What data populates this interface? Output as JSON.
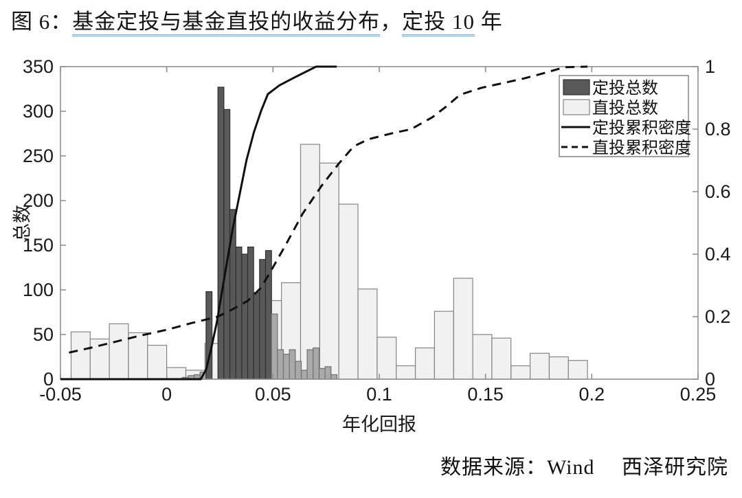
{
  "title": {
    "parts": [
      {
        "text": "图 6：",
        "underline": false
      },
      {
        "text": "基金定投与基金直投的收益分布",
        "underline": true
      },
      {
        "text": "，",
        "underline": false
      },
      {
        "text": "定投 10",
        "underline": true
      },
      {
        "text": " 年",
        "underline": false
      }
    ]
  },
  "source_note": "数据来源：Wind　 西泽研究院",
  "chart_data": {
    "type": "bar",
    "subtype": "histogram_with_cumulative_density",
    "title": "基金定投与基金直投的收益分布，定投10年",
    "xlabel": "年化回报",
    "ylabel_left": "总数",
    "ylabel_right": "",
    "x_range": [
      -0.05,
      0.25
    ],
    "y_left_range": [
      0,
      350
    ],
    "y_right_range": [
      0,
      1
    ],
    "grid": false,
    "axis_color": "#8f8f8f",
    "tick_label_color": "#191919",
    "x_ticks": [
      {
        "v": -0.05,
        "label": "-0.05"
      },
      {
        "v": 0,
        "label": "0"
      },
      {
        "v": 0.05,
        "label": "0.05"
      },
      {
        "v": 0.1,
        "label": "0.1"
      },
      {
        "v": 0.15,
        "label": "0.15"
      },
      {
        "v": 0.2,
        "label": "0.2"
      },
      {
        "v": 0.25,
        "label": "0.25"
      }
    ],
    "y_ticks_left": [
      {
        "v": 0,
        "label": "0"
      },
      {
        "v": 50,
        "label": "50"
      },
      {
        "v": 100,
        "label": "100"
      },
      {
        "v": 150,
        "label": "150"
      },
      {
        "v": 200,
        "label": "200"
      },
      {
        "v": 250,
        "label": "250"
      },
      {
        "v": 300,
        "label": "300"
      },
      {
        "v": 350,
        "label": "350"
      }
    ],
    "y_ticks_right": [
      {
        "v": 0,
        "label": "0"
      },
      {
        "v": 0.2,
        "label": "0.2"
      },
      {
        "v": 0.4,
        "label": "0.4"
      },
      {
        "v": 0.6,
        "label": "0.6"
      },
      {
        "v": 0.8,
        "label": "0.8"
      },
      {
        "v": 1,
        "label": "1"
      }
    ],
    "series": [
      {
        "name": "定投总数",
        "type": "histogram",
        "axis": "left",
        "bin_start": 0.0073,
        "bin_width": 0.0028,
        "counts": [
          2,
          4,
          5,
          8,
          98,
          0,
          327,
          302,
          190,
          148,
          140,
          148,
          97,
          134,
          144,
          73,
          33,
          28,
          33,
          20,
          10,
          33,
          35,
          12,
          14,
          5
        ],
        "color": "#595959",
        "edge": "#2e2e2e",
        "tail_color": "#a9a9a9",
        "tail_edge": "#707070",
        "tail_max_count": 90
      },
      {
        "name": "直投总数",
        "type": "histogram",
        "axis": "left",
        "bin_start": -0.045,
        "bin_width": 0.009,
        "counts": [
          53,
          45,
          62,
          52,
          38,
          13,
          10,
          40,
          18,
          15,
          88,
          108,
          263,
          242,
          196,
          101,
          47,
          15,
          35,
          76,
          113,
          50,
          46,
          15,
          29,
          25,
          21
        ],
        "color": "#f1f1f1",
        "edge": "#848484"
      },
      {
        "name": "定投累积密度",
        "type": "line",
        "style": "solid",
        "axis": "right",
        "color": "#101010",
        "points": [
          [
            -0.05,
            0
          ],
          [
            0.016,
            0
          ],
          [
            0.0185,
            0.03
          ],
          [
            0.021,
            0.1
          ],
          [
            0.0235,
            0.18
          ],
          [
            0.026,
            0.28
          ],
          [
            0.0285,
            0.38
          ],
          [
            0.031,
            0.48
          ],
          [
            0.034,
            0.58
          ],
          [
            0.0375,
            0.7
          ],
          [
            0.041,
            0.79
          ],
          [
            0.0445,
            0.86
          ],
          [
            0.0476,
            0.912
          ],
          [
            0.053,
            0.94
          ],
          [
            0.06,
            0.965
          ],
          [
            0.0703,
            1.0
          ],
          [
            0.08,
            1.0
          ]
        ]
      },
      {
        "name": "直投累积密度",
        "type": "line",
        "style": "dashed",
        "axis": "right",
        "color": "#101010",
        "points": [
          [
            -0.046,
            0.085
          ],
          [
            -0.036,
            0.1
          ],
          [
            -0.024,
            0.12
          ],
          [
            -0.012,
            0.14
          ],
          [
            0,
            0.158
          ],
          [
            0.012,
            0.18
          ],
          [
            0.024,
            0.2
          ],
          [
            0.03,
            0.22
          ],
          [
            0.038,
            0.25
          ],
          [
            0.044,
            0.29
          ],
          [
            0.048,
            0.334
          ],
          [
            0.056,
            0.43
          ],
          [
            0.064,
            0.53
          ],
          [
            0.073,
            0.62
          ],
          [
            0.081,
            0.69
          ],
          [
            0.088,
            0.745
          ],
          [
            0.095,
            0.768
          ],
          [
            0.105,
            0.785
          ],
          [
            0.115,
            0.8
          ],
          [
            0.125,
            0.838
          ],
          [
            0.132,
            0.875
          ],
          [
            0.138,
            0.91
          ],
          [
            0.148,
            0.932
          ],
          [
            0.158,
            0.947
          ],
          [
            0.168,
            0.962
          ],
          [
            0.178,
            0.98
          ],
          [
            0.187,
            0.998
          ],
          [
            0.198,
            1.0
          ]
        ]
      }
    ],
    "legend": {
      "position": "top-right",
      "border_color": "#848484",
      "items": [
        "定投总数",
        "直投总数",
        "定投累积密度",
        "直投累积密度"
      ]
    }
  }
}
